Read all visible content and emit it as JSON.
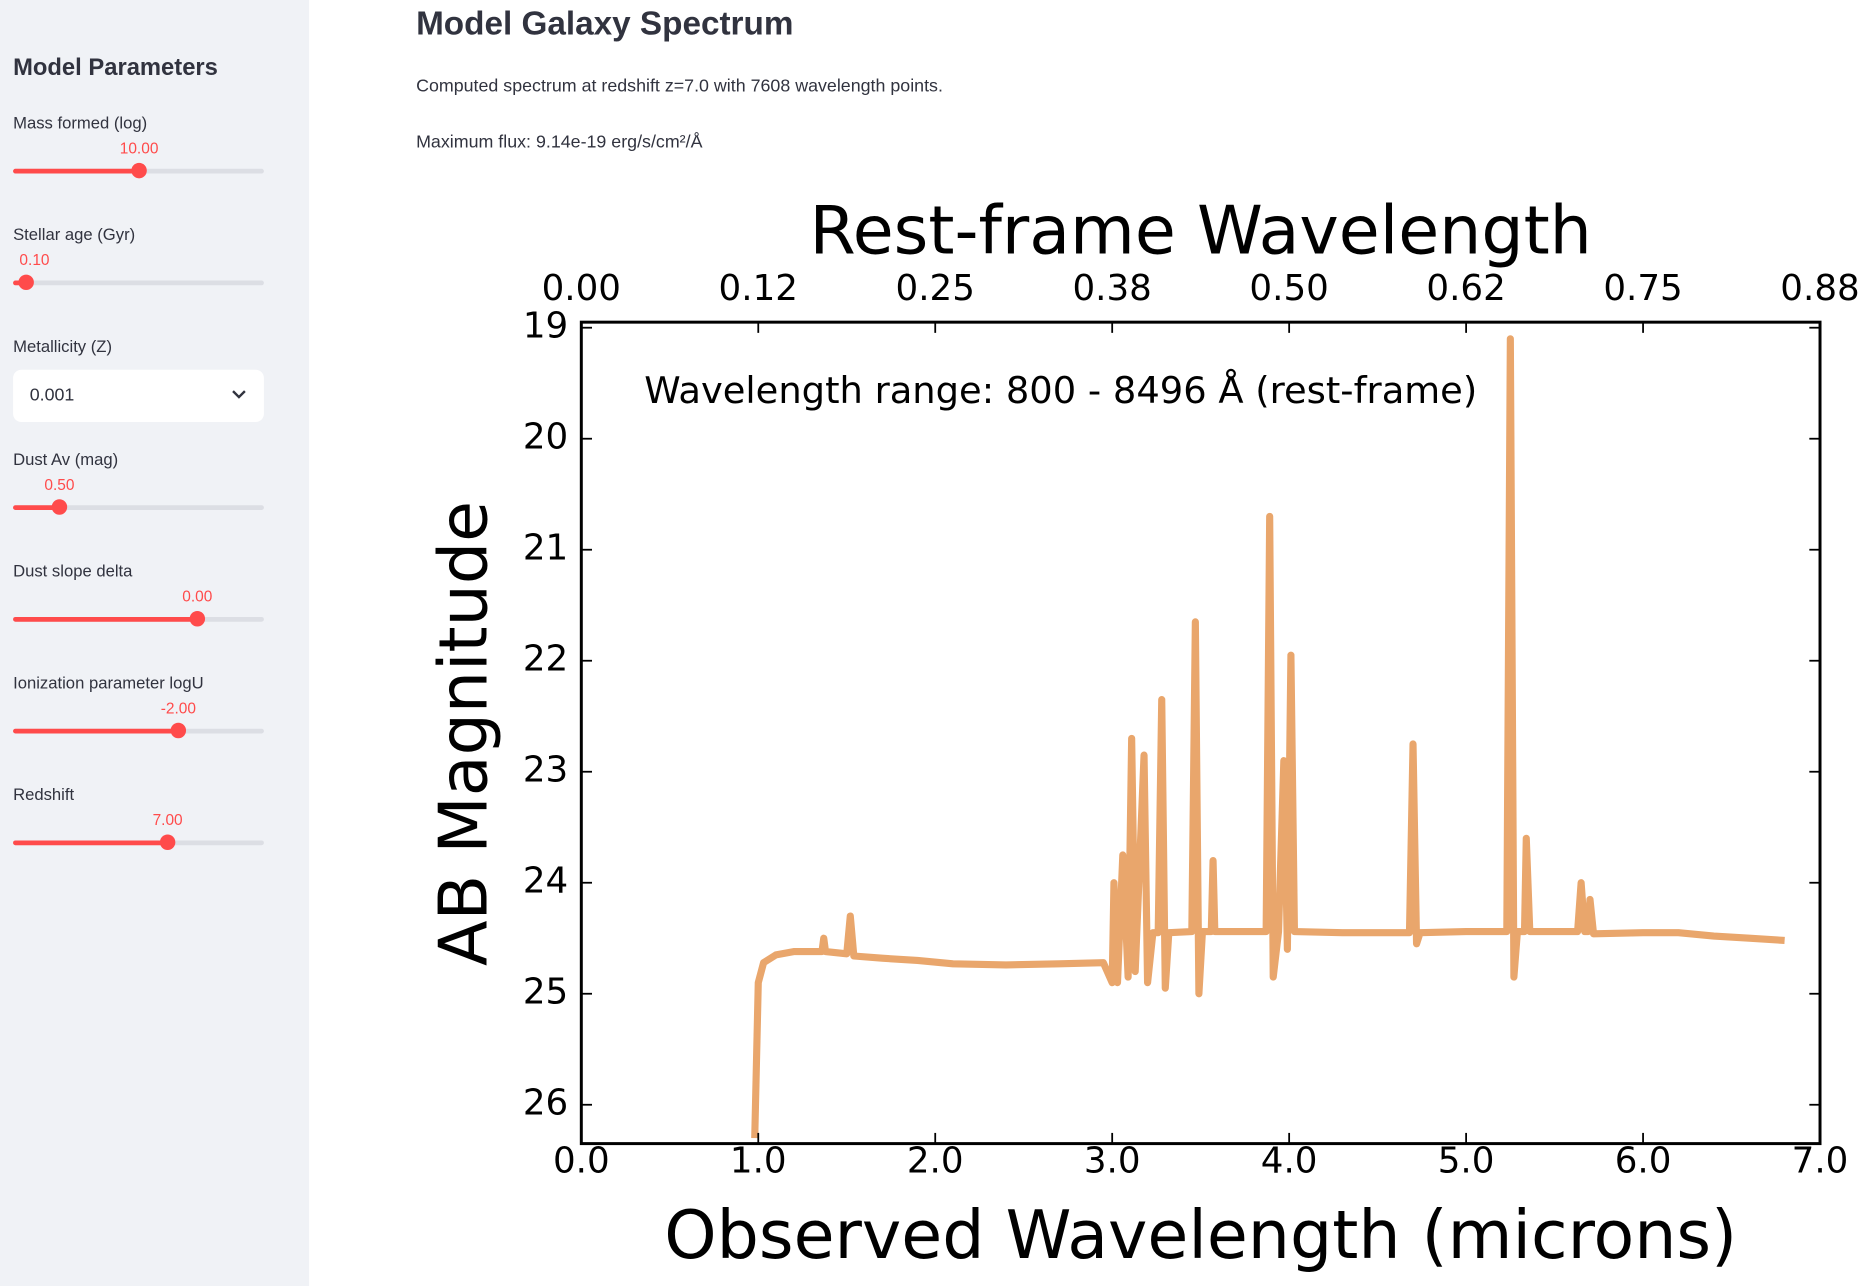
{
  "sidebar": {
    "title": "Model Parameters",
    "sliders": [
      {
        "label": "Mass formed (log)",
        "value": "10.00"
      },
      {
        "label": "Stellar age (Gyr)",
        "value": "0.10"
      },
      {
        "label": "Dust Av (mag)",
        "value": "0.50"
      },
      {
        "label": "Dust slope delta",
        "value": "0.00"
      },
      {
        "label": "Ionization parameter logU",
        "value": "-2.00"
      },
      {
        "label": "Redshift",
        "value": "7.00"
      }
    ],
    "select": {
      "label": "Metallicity (Z)",
      "value": "0.001"
    }
  },
  "main": {
    "title": "Model Galaxy Spectrum",
    "caption": "Computed spectrum at redshift z=7.0 with 7608 wavelength points.",
    "max_flux": "Maximum flux: 9.14e-19 erg/s/cm²/Å"
  },
  "chart_data": {
    "type": "line",
    "title": "Rest-frame Wavelength",
    "xlabel": "Observed Wavelength (microns)",
    "ylabel": "AB Magnitude",
    "annotation": "Wavelength range: 800 - 8496 Å (rest-frame)",
    "color": "#e9a66c",
    "xlim": [
      0,
      7
    ],
    "xticks": [
      {
        "value": 0,
        "label": "0.0"
      },
      {
        "value": 1,
        "label": "1.0"
      },
      {
        "value": 2,
        "label": "2.0"
      },
      {
        "value": 3,
        "label": "3.0"
      },
      {
        "value": 4,
        "label": "4.0"
      },
      {
        "value": 5,
        "label": "5.0"
      },
      {
        "value": 6,
        "label": "6.0"
      },
      {
        "value": 7,
        "label": "7.0"
      }
    ],
    "x2lim": [
      0,
      0.875
    ],
    "x2ticks": [
      {
        "value": 0,
        "label": "0.00"
      },
      {
        "value": 0.125,
        "label": "0.12"
      },
      {
        "value": 0.25,
        "label": "0.25"
      },
      {
        "value": 0.375,
        "label": "0.38"
      },
      {
        "value": 0.5,
        "label": "0.50"
      },
      {
        "value": 0.625,
        "label": "0.62"
      },
      {
        "value": 0.75,
        "label": "0.75"
      },
      {
        "value": 0.875,
        "label": "0.88"
      }
    ],
    "ylim": [
      26.35,
      18.95
    ],
    "yticks": [
      19,
      20,
      21,
      22,
      23,
      24,
      25,
      26
    ],
    "x": [
      0.98,
      1.0,
      1.03,
      1.1,
      1.2,
      1.3,
      1.36,
      1.37,
      1.38,
      1.5,
      1.52,
      1.54,
      1.7,
      1.9,
      2.1,
      2.4,
      2.7,
      2.95,
      3.0,
      3.01,
      3.03,
      3.06,
      3.09,
      3.11,
      3.13,
      3.18,
      3.2,
      3.23,
      3.26,
      3.28,
      3.3,
      3.32,
      3.45,
      3.47,
      3.49,
      3.51,
      3.56,
      3.57,
      3.58,
      3.87,
      3.89,
      3.91,
      3.94,
      3.97,
      3.99,
      4.01,
      4.03,
      4.3,
      4.68,
      4.7,
      4.72,
      4.74,
      5.0,
      5.23,
      5.25,
      5.27,
      5.29,
      5.33,
      5.34,
      5.36,
      5.63,
      5.65,
      5.67,
      5.69,
      5.7,
      5.72,
      6.0,
      6.2,
      6.4,
      6.6,
      6.8
    ],
    "values": [
      26.3,
      24.9,
      24.72,
      24.65,
      24.62,
      24.62,
      24.62,
      24.5,
      24.62,
      24.64,
      24.3,
      24.66,
      24.68,
      24.7,
      24.73,
      24.74,
      24.73,
      24.72,
      24.9,
      24.0,
      24.9,
      23.75,
      24.85,
      22.7,
      24.8,
      22.85,
      24.9,
      24.45,
      24.45,
      22.35,
      24.95,
      24.45,
      24.44,
      21.65,
      25.0,
      24.44,
      24.44,
      23.8,
      24.44,
      24.44,
      20.7,
      24.85,
      24.44,
      22.9,
      24.6,
      21.95,
      24.44,
      24.45,
      24.45,
      22.75,
      24.55,
      24.45,
      24.44,
      24.44,
      19.1,
      24.85,
      24.44,
      24.44,
      23.6,
      24.44,
      24.44,
      24.0,
      24.44,
      24.44,
      24.15,
      24.46,
      24.45,
      24.45,
      24.48,
      24.5,
      24.52
    ]
  }
}
